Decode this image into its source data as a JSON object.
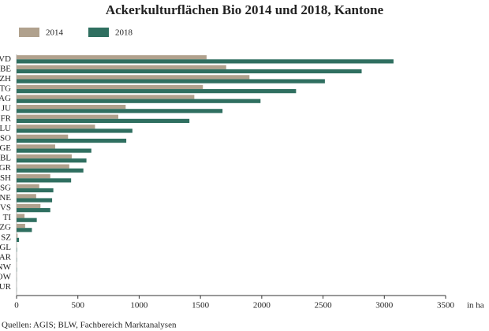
{
  "chart_data": {
    "type": "hbar",
    "title": "Ackerkulturflächen Bio 2014 und 2018, Kantone",
    "x_label": "in ha",
    "source": "Quellen: AGIS; BLW, Fachbereich Marktanalysen",
    "categories": [
      "VD",
      "BE",
      "ZH",
      "TG",
      "AG",
      "JU",
      "FR",
      "LU",
      "SO",
      "GE",
      "BL",
      "GR",
      "SH",
      "SG",
      "NE",
      "VS",
      "TI",
      "ZG",
      "SZ",
      "GL",
      "AR",
      "NW",
      "OW",
      "UR"
    ],
    "series": [
      {
        "name": "2014",
        "color": "#b0a18d",
        "values": [
          1550,
          1710,
          1900,
          1520,
          1450,
          890,
          830,
          640,
          420,
          315,
          450,
          430,
          275,
          185,
          160,
          195,
          65,
          70,
          8,
          2,
          1,
          1,
          1,
          0
        ]
      },
      {
        "name": "2018",
        "color": "#2f6f60",
        "values": [
          3075,
          2815,
          2515,
          2280,
          1990,
          1680,
          1410,
          945,
          895,
          610,
          570,
          545,
          445,
          300,
          290,
          275,
          165,
          125,
          20,
          3,
          2,
          2,
          1,
          1
        ]
      }
    ],
    "xlim": [
      0,
      3500
    ],
    "xticks": [
      0,
      500,
      1000,
      1500,
      2000,
      2500,
      3000,
      3500
    ],
    "grid": false,
    "legend": "top-left"
  }
}
